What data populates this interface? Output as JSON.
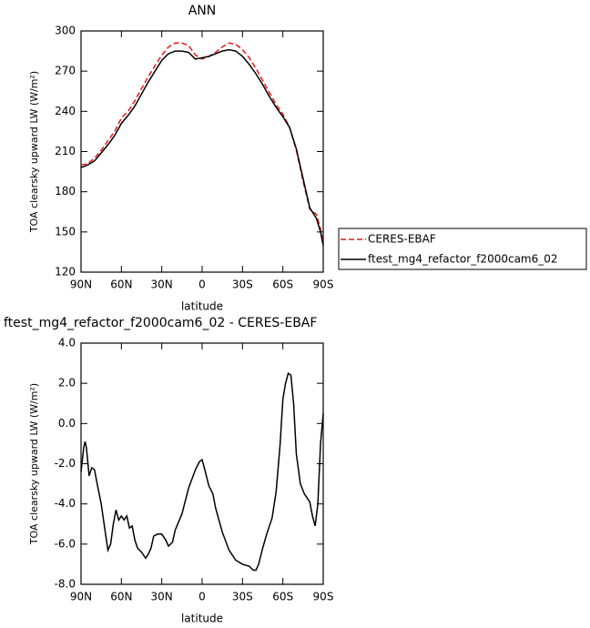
{
  "chart_data": [
    {
      "type": "line",
      "title": "ANN",
      "xlabel": "latitude",
      "ylabel": "TOA clearsky upward LW (W/m²)",
      "x": [
        90,
        85,
        80,
        75,
        70,
        65,
        60,
        55,
        50,
        45,
        40,
        35,
        30,
        25,
        20,
        15,
        10,
        5,
        0,
        -5,
        -10,
        -15,
        -20,
        -25,
        -30,
        -35,
        -40,
        -45,
        -50,
        -55,
        -60,
        -65,
        -70,
        -75,
        -80,
        -85,
        -88,
        -90
      ],
      "series": [
        {
          "name": "CERES-EBAF",
          "color": "#e41a1c",
          "dash": "dashed",
          "values": [
            200,
            201,
            205,
            211,
            218,
            225,
            235,
            240,
            248,
            257,
            266,
            274,
            282,
            288,
            291,
            291,
            289,
            282,
            279,
            281,
            284,
            288,
            291,
            290,
            286,
            280,
            272,
            263,
            254,
            245,
            238,
            228,
            211,
            188,
            167,
            163,
            152,
            142
          ]
        },
        {
          "name": "ftest_mg4_refactor_f2000cam6_02",
          "color": "#000000",
          "dash": "solid",
          "values": [
            198,
            200,
            203,
            209,
            215,
            222,
            231,
            237,
            244,
            253,
            262,
            270,
            278,
            283,
            285,
            285,
            284,
            279,
            280,
            281,
            283,
            285,
            286,
            285,
            281,
            275,
            268,
            260,
            251,
            243,
            236,
            228,
            212,
            190,
            168,
            160,
            150,
            140
          ]
        }
      ],
      "xlim": [
        90,
        -90
      ],
      "xticks": [
        {
          "value": 90,
          "label": "90N"
        },
        {
          "value": 60,
          "label": "60N"
        },
        {
          "value": 30,
          "label": "30N"
        },
        0,
        {
          "value": -30,
          "label": "30S"
        },
        {
          "value": -60,
          "label": "60S"
        },
        {
          "value": -90,
          "label": "90S"
        }
      ],
      "ylim": [
        120,
        300
      ],
      "yticks": [
        120,
        150,
        180,
        210,
        240,
        270,
        300
      ],
      "legend": "right"
    },
    {
      "type": "line",
      "title": "ftest_mg4_refactor_f2000cam6_02 - CERES-EBAF",
      "xlabel": "latitude",
      "ylabel": "TOA clearsky upward LW (W/m²)",
      "x": [
        90,
        88,
        87,
        86,
        84,
        82,
        80,
        78,
        75,
        72,
        70,
        68,
        66,
        64,
        62,
        60,
        58,
        56,
        54,
        52,
        50,
        48,
        45,
        42,
        40,
        38,
        36,
        33,
        30,
        27,
        25,
        22,
        20,
        15,
        10,
        5,
        2,
        0,
        -2,
        -5,
        -8,
        -10,
        -15,
        -20,
        -25,
        -30,
        -35,
        -38,
        -40,
        -42,
        -45,
        -48,
        -52,
        -55,
        -58,
        -60,
        -62,
        -64,
        -66,
        -68,
        -70,
        -73,
        -76,
        -80,
        -82,
        -84,
        -86,
        -88,
        -90
      ],
      "series": [
        {
          "color": "#000000",
          "dash": "solid",
          "values": [
            -2.4,
            -1.2,
            -0.9,
            -1.2,
            -2.6,
            -2.2,
            -2.3,
            -3.0,
            -4.0,
            -5.4,
            -6.3,
            -6.0,
            -5.0,
            -4.3,
            -4.8,
            -4.6,
            -4.8,
            -4.6,
            -5.2,
            -5.1,
            -5.8,
            -6.2,
            -6.4,
            -6.7,
            -6.5,
            -6.2,
            -5.6,
            -5.5,
            -5.5,
            -5.8,
            -6.1,
            -5.9,
            -5.3,
            -4.5,
            -3.2,
            -2.3,
            -1.9,
            -1.8,
            -2.3,
            -3.1,
            -3.5,
            -4.2,
            -5.4,
            -6.3,
            -6.8,
            -7.0,
            -7.1,
            -7.3,
            -7.3,
            -7.0,
            -6.2,
            -5.5,
            -4.7,
            -3.4,
            -1.0,
            1.2,
            2.0,
            2.5,
            2.4,
            1.0,
            -1.5,
            -3.0,
            -3.5,
            -3.9,
            -4.6,
            -5.1,
            -4.0,
            -1.0,
            0.5
          ]
        }
      ],
      "xlim": [
        90,
        -90
      ],
      "xticks": [
        {
          "value": 90,
          "label": "90N"
        },
        {
          "value": 60,
          "label": "60N"
        },
        {
          "value": 30,
          "label": "30N"
        },
        0,
        {
          "value": -30,
          "label": "30S"
        },
        {
          "value": -60,
          "label": "60S"
        },
        {
          "value": -90,
          "label": "90S"
        }
      ],
      "ylim": [
        -8,
        4
      ],
      "yticks": [
        {
          "value": -8,
          "label": "-8.0"
        },
        {
          "value": -6,
          "label": "-6.0"
        },
        {
          "value": -4,
          "label": "-4.0"
        },
        {
          "value": -2,
          "label": "-2.0"
        },
        {
          "value": 0,
          "label": "0.0"
        },
        {
          "value": 2,
          "label": "2.0"
        },
        {
          "value": 4,
          "label": "4.0"
        }
      ]
    }
  ]
}
